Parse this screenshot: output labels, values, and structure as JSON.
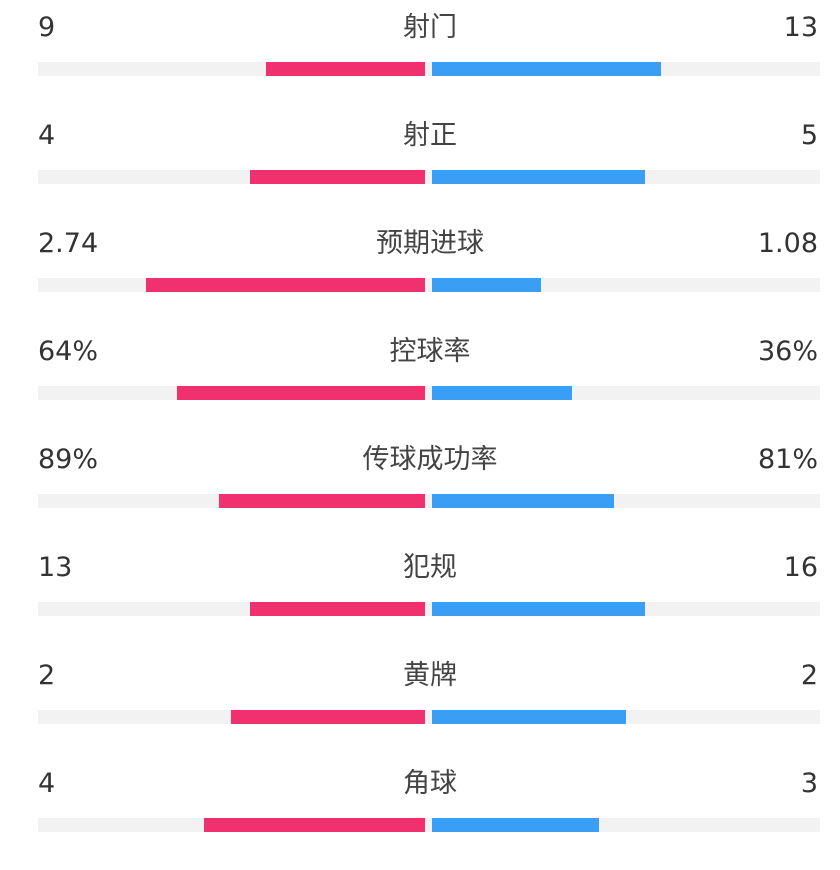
{
  "colors": {
    "home": "#f0306f",
    "away": "#3a9ef5",
    "track": "#f2f2f2"
  },
  "stats": [
    {
      "label": "射门",
      "left": "9",
      "right": "13"
    },
    {
      "label": "射正",
      "left": "4",
      "right": "5"
    },
    {
      "label": "预期进球",
      "left": "2.74",
      "right": "1.08"
    },
    {
      "label": "控球率",
      "left": "64%",
      "right": "36%"
    },
    {
      "label": "传球成功率",
      "left": "89%",
      "right": "81%"
    },
    {
      "label": "犯规",
      "left": "13",
      "right": "16"
    },
    {
      "label": "黄牌",
      "left": "2",
      "right": "2"
    },
    {
      "label": "角球",
      "left": "4",
      "right": "3"
    }
  ],
  "chart_data": {
    "type": "bar",
    "categories": [
      "射门",
      "射正",
      "预期进球",
      "控球率",
      "传球成功率",
      "犯规",
      "黄牌",
      "角球"
    ],
    "series": [
      {
        "values": [
          9,
          4,
          2.74,
          64,
          89,
          13,
          2,
          4
        ]
      },
      {
        "values": [
          13,
          5,
          1.08,
          36,
          81,
          16,
          2,
          3
        ]
      }
    ],
    "bar_fill_fraction": {
      "left": [
        0.41,
        0.45,
        0.72,
        0.64,
        0.53,
        0.45,
        0.5,
        0.57
      ],
      "right": [
        0.59,
        0.55,
        0.28,
        0.36,
        0.47,
        0.55,
        0.5,
        0.43
      ]
    }
  }
}
